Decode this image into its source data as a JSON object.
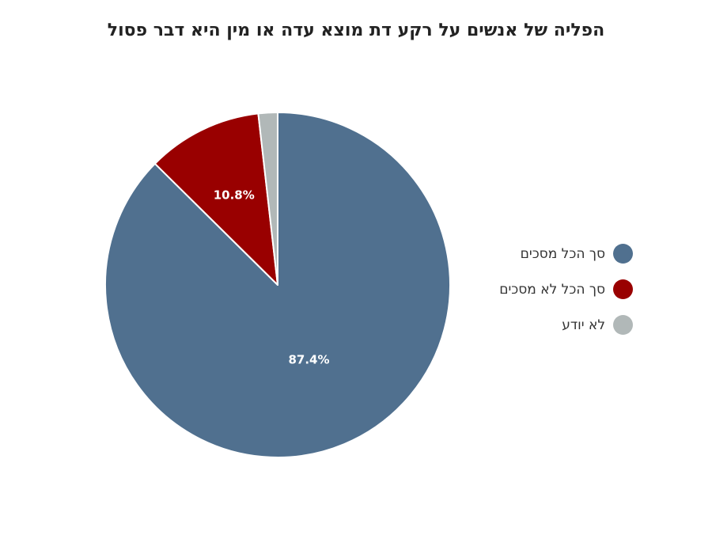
{
  "chart_data": {
    "type": "pie",
    "title": "הפליה של אנשים על רקע דת מוצא עדה או מין היא דבר פסול",
    "slices": [
      {
        "name": "סך הכל מסכים",
        "value": 87.4,
        "label": "87.4%",
        "color": "#50708f"
      },
      {
        "name": "סך הכל לא מסכים",
        "value": 10.8,
        "label": "10.8%",
        "color": "#990000"
      },
      {
        "name": "לא יודע",
        "value": 1.8,
        "label": "",
        "color": "#b1b8b8"
      }
    ],
    "legend_position": "right"
  }
}
